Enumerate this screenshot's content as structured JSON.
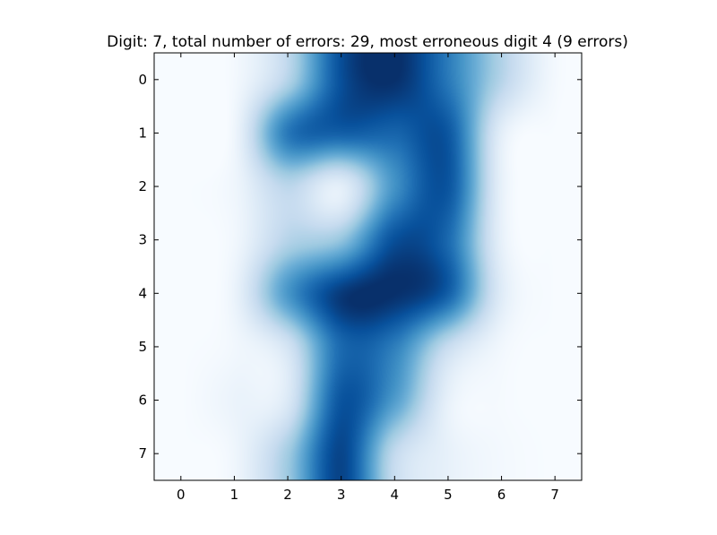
{
  "chart_data": {
    "type": "heatmap",
    "title": "Digit: 7, total number of errors: 29, most erroneous digit 4 (9 errors)",
    "xlabel": "",
    "ylabel": "",
    "x_ticks": [
      "0",
      "1",
      "2",
      "3",
      "4",
      "5",
      "6",
      "7"
    ],
    "y_ticks": [
      "0",
      "1",
      "2",
      "3",
      "4",
      "5",
      "6",
      "7"
    ],
    "xlim": [
      -0.5,
      7.5
    ],
    "ylim": [
      7.5,
      -0.5
    ],
    "colormap": "Blues",
    "interpolation": "bicubic",
    "grid": false,
    "colors": {
      "low": "#f7fbff",
      "high": "#08306b"
    },
    "values": [
      [
        0.0,
        0.02,
        0.3,
        0.88,
        1.0,
        0.72,
        0.3,
        0.02
      ],
      [
        0.0,
        0.04,
        0.72,
        0.82,
        0.8,
        0.85,
        0.1,
        0.0
      ],
      [
        0.0,
        0.04,
        0.28,
        0.1,
        0.62,
        0.86,
        0.08,
        0.0
      ],
      [
        0.0,
        0.03,
        0.3,
        0.4,
        0.88,
        0.78,
        0.08,
        0.0
      ],
      [
        0.0,
        0.06,
        0.6,
        0.96,
        1.0,
        0.82,
        0.12,
        0.0
      ],
      [
        0.0,
        0.03,
        0.18,
        0.78,
        0.7,
        0.24,
        0.03,
        0.0
      ],
      [
        0.0,
        0.06,
        0.14,
        0.86,
        0.58,
        0.08,
        0.01,
        0.0
      ],
      [
        0.0,
        0.04,
        0.36,
        0.92,
        0.26,
        0.08,
        0.02,
        0.0
      ]
    ]
  }
}
